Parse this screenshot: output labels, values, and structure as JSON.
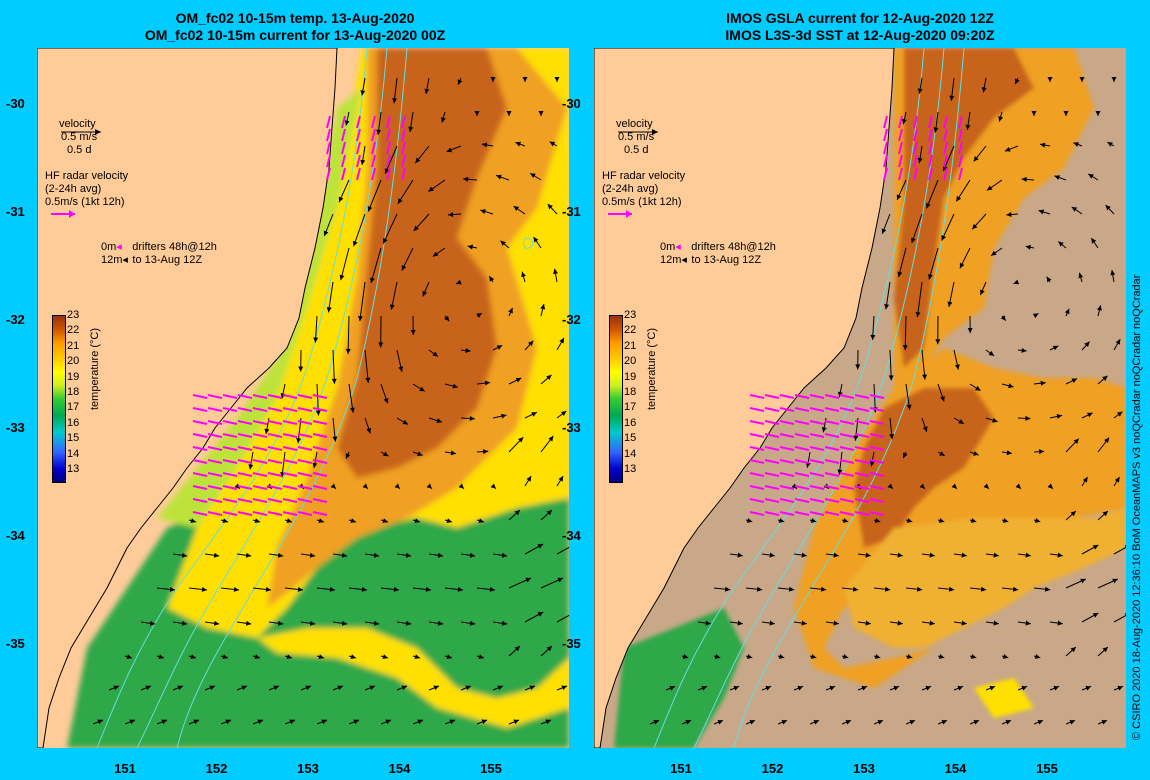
{
  "left_panel": {
    "title_line1": "OM_fc02 10-15m temp. 13-Aug-2020",
    "title_line2": "OM_fc02 10-15m current for 13-Aug-2020 00Z"
  },
  "right_panel": {
    "title_line1": "IMOS GSLA current for 12-Aug-2020 12Z",
    "title_line2": "IMOS L3S-3d SST at 12-Aug-2020 09:20Z"
  },
  "axes": {
    "y_ticks": [
      "-30",
      "-31",
      "-32",
      "-33",
      "-34",
      "-35"
    ],
    "x_ticks": [
      "151",
      "152",
      "153",
      "154",
      "155"
    ],
    "lat_range": [
      -29.5,
      -36.0
    ],
    "lon_range": [
      150.0,
      155.8
    ]
  },
  "legend": {
    "velocity_label": "velocity",
    "velocity_scale": "0.5 m/s",
    "velocity_days": "0.5 d",
    "hf_label": "HF radar velocity",
    "hf_avg": "(2-24h avg)",
    "hf_scale": "0.5m/s (1kt 12h)",
    "drifters_0m": "0m",
    "drifters_label": "drifters 48h@12h",
    "drifters_12m": "12m",
    "drifters_to": "to 13-Aug 12Z"
  },
  "colorbar": {
    "title": "temperature (°C)",
    "ticks": [
      "23",
      "22",
      "21",
      "20",
      "19",
      "18",
      "17",
      "16",
      "15",
      "14",
      "13"
    ]
  },
  "side_credit": "© CSIRO 2020   18-Aug-2020 12:36:10 BoM OceanMAPS v3 noQCradar noQCradar noQCradar",
  "colors": {
    "background": "#00ccff",
    "land": "#ffcc99",
    "no_data": "#c8a888",
    "hf_radar": "#ff00ff",
    "contour": "#66dddd"
  }
}
